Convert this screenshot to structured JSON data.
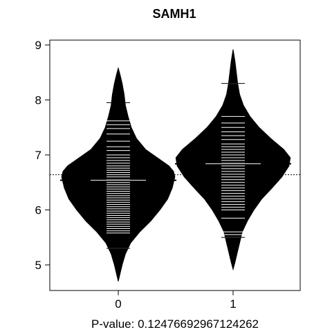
{
  "chart_data": {
    "type": "beanplot",
    "title": "SAMH1",
    "xlabel": "P-value: 0.12476692967124262",
    "ylabel": "",
    "categories": [
      "0",
      "1"
    ],
    "y_ticks": [
      "5",
      "6",
      "7",
      "8",
      "9"
    ],
    "ylim": [
      4.5,
      9.1
    ],
    "overall_mean": 6.64,
    "colors": {
      "bean": "#000000",
      "lines": "#ffffff",
      "background": "#ffffff"
    },
    "groups": [
      {
        "category": "0",
        "mean": 6.54,
        "density": [
          [
            4.7,
            0.0
          ],
          [
            4.85,
            0.03
          ],
          [
            5.0,
            0.06
          ],
          [
            5.2,
            0.11
          ],
          [
            5.4,
            0.19
          ],
          [
            5.6,
            0.33
          ],
          [
            5.8,
            0.5
          ],
          [
            6.0,
            0.64
          ],
          [
            6.2,
            0.76
          ],
          [
            6.4,
            0.83
          ],
          [
            6.6,
            0.87
          ],
          [
            6.7,
            0.85
          ],
          [
            6.8,
            0.78
          ],
          [
            6.95,
            0.6
          ],
          [
            7.1,
            0.42
          ],
          [
            7.3,
            0.28
          ],
          [
            7.5,
            0.2
          ],
          [
            7.7,
            0.15
          ],
          [
            7.9,
            0.11
          ],
          [
            8.1,
            0.09
          ],
          [
            8.3,
            0.06
          ],
          [
            8.45,
            0.03
          ],
          [
            8.58,
            0.0
          ]
        ],
        "observations": [
          5.3,
          5.58,
          5.62,
          5.66,
          5.7,
          5.74,
          5.78,
          5.82,
          5.86,
          5.9,
          5.94,
          5.98,
          6.02,
          6.06,
          6.1,
          6.14,
          6.18,
          6.22,
          6.26,
          6.3,
          6.34,
          6.38,
          6.42,
          6.46,
          6.5,
          6.55,
          6.6,
          6.64,
          6.68,
          6.72,
          6.76,
          6.8,
          6.85,
          6.9,
          6.95,
          7.0,
          7.08,
          7.15,
          7.25,
          7.38,
          7.48,
          7.55,
          7.62,
          7.95
        ]
      },
      {
        "category": "1",
        "mean": 6.84,
        "density": [
          [
            4.92,
            0.0
          ],
          [
            5.05,
            0.03
          ],
          [
            5.2,
            0.06
          ],
          [
            5.4,
            0.1
          ],
          [
            5.6,
            0.14
          ],
          [
            5.8,
            0.22
          ],
          [
            6.0,
            0.32
          ],
          [
            6.2,
            0.44
          ],
          [
            6.4,
            0.6
          ],
          [
            6.6,
            0.75
          ],
          [
            6.8,
            0.86
          ],
          [
            6.95,
            0.88
          ],
          [
            7.1,
            0.78
          ],
          [
            7.3,
            0.58
          ],
          [
            7.5,
            0.4
          ],
          [
            7.7,
            0.26
          ],
          [
            7.9,
            0.16
          ],
          [
            8.1,
            0.1
          ],
          [
            8.3,
            0.07
          ],
          [
            8.5,
            0.05
          ],
          [
            8.7,
            0.03
          ],
          [
            8.92,
            0.0
          ]
        ],
        "observations": [
          5.5,
          5.55,
          5.6,
          5.85,
          6.0,
          6.05,
          6.1,
          6.15,
          6.2,
          6.25,
          6.3,
          6.35,
          6.4,
          6.45,
          6.5,
          6.55,
          6.6,
          6.65,
          6.7,
          6.75,
          6.8,
          6.85,
          6.9,
          6.95,
          7.0,
          7.05,
          7.1,
          7.15,
          7.2,
          7.28,
          7.35,
          7.42,
          7.5,
          7.58,
          7.7,
          8.3
        ]
      }
    ]
  }
}
